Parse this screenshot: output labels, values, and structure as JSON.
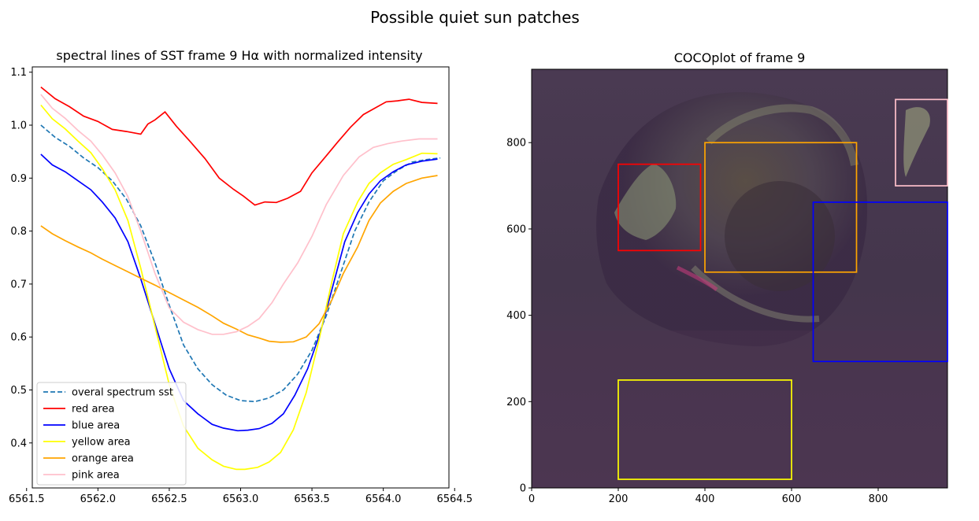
{
  "figure": {
    "suptitle": "Possible quiet sun patches"
  },
  "chart_data": [
    {
      "type": "line",
      "title": "spectral lines of SST frame 9 Hα with normalized intensity",
      "xlabel": "",
      "ylabel": "",
      "xlim": [
        6561.54,
        6564.46
      ],
      "ylim": [
        0.315,
        1.11
      ],
      "xticks": [
        6561.5,
        6562.0,
        6562.5,
        6563.0,
        6563.5,
        6564.0,
        6564.5
      ],
      "xtick_labels": [
        "6561.5",
        "6562.0",
        "6562.5",
        "6563.0",
        "6563.5",
        "6564.0",
        "6564.5"
      ],
      "yticks": [
        0.4,
        0.5,
        0.6,
        0.7,
        0.8,
        0.9,
        1.0,
        1.1
      ],
      "ytick_labels": [
        "0.4",
        "0.5",
        "0.6",
        "0.7",
        "0.8",
        "0.9",
        "1.0",
        "1.1"
      ],
      "grid": false,
      "legend_position": "lower-left",
      "x": [
        6561.6,
        6561.7,
        6561.8,
        6561.9,
        6562.0,
        6562.1,
        6562.2,
        6562.3,
        6562.4,
        6562.5,
        6562.6,
        6562.7,
        6562.8,
        6562.9,
        6563.0,
        6563.1,
        6563.2,
        6563.3,
        6563.4,
        6563.5,
        6563.6,
        6563.7,
        6563.8,
        6563.9,
        6564.0,
        6564.1,
        6564.2,
        6564.3,
        6564.4
      ],
      "series": [
        {
          "name": "overal spectrum sst",
          "color": "#1f77b4",
          "dashed": true,
          "values": [
            1.0,
            0.977,
            0.96,
            0.938,
            0.92,
            0.895,
            0.86,
            0.81,
            0.74,
            0.66,
            0.585,
            0.54,
            0.51,
            0.49,
            0.48,
            0.478,
            0.485,
            0.5,
            0.53,
            0.575,
            0.64,
            0.72,
            0.8,
            0.855,
            0.895,
            0.915,
            0.93,
            0.935,
            0.938
          ]
        },
        {
          "name": "red area",
          "color": "#ff0000",
          "dashed": false,
          "values": [
            1.072,
            1.05,
            1.035,
            1.017,
            1.007,
            0.992,
            0.988,
            0.983,
            1.002,
            1.01,
            1.025,
            0.998,
            0.968,
            0.937,
            0.9,
            0.879,
            0.866,
            0.849,
            0.855,
            0.854,
            0.862,
            0.875,
            0.91,
            0.942,
            0.968,
            0.996,
            1.02,
            1.032,
            1.044,
            1.046,
            1.049,
            1.043,
            1.041
          ],
          "x": [
            6561.6,
            6561.7,
            6561.8,
            6561.9,
            6562.0,
            6562.1,
            6562.2,
            6562.3,
            6562.35,
            6562.4,
            6562.47,
            6562.55,
            6562.65,
            6562.75,
            6562.85,
            6562.95,
            6563.02,
            6563.1,
            6563.17,
            6563.25,
            6563.33,
            6563.42,
            6563.5,
            6563.6,
            6563.68,
            6563.77,
            6563.86,
            6563.94,
            6564.02,
            6564.1,
            6564.18,
            6564.27,
            6564.38
          ]
        },
        {
          "name": "blue area",
          "color": "#0000ff",
          "dashed": false,
          "values": [
            0.945,
            0.925,
            0.912,
            0.895,
            0.878,
            0.855,
            0.825,
            0.78,
            0.71,
            0.625,
            0.54,
            0.48,
            0.455,
            0.435,
            0.428,
            0.423,
            0.424,
            0.427,
            0.437,
            0.455,
            0.49,
            0.54,
            0.61,
            0.7,
            0.78,
            0.835,
            0.87,
            0.895,
            0.912,
            0.925,
            0.932,
            0.936
          ],
          "x": [
            6561.6,
            6561.68,
            6561.77,
            6561.86,
            6561.95,
            6562.03,
            6562.12,
            6562.21,
            6562.3,
            6562.4,
            6562.5,
            6562.6,
            6562.7,
            6562.8,
            6562.88,
            6562.98,
            6563.05,
            6563.13,
            6563.22,
            6563.3,
            6563.38,
            6563.47,
            6563.56,
            6563.65,
            6563.73,
            6563.82,
            6563.9,
            6563.98,
            6564.07,
            6564.16,
            6564.27,
            6564.38
          ]
        },
        {
          "name": "yellow area",
          "color": "#ffff00",
          "dashed": false,
          "values": [
            1.038,
            1.012,
            0.993,
            0.97,
            0.948,
            0.918,
            0.878,
            0.82,
            0.73,
            0.62,
            0.51,
            0.432,
            0.39,
            0.368,
            0.356,
            0.35,
            0.35,
            0.354,
            0.364,
            0.382,
            0.425,
            0.495,
            0.595,
            0.705,
            0.795,
            0.855,
            0.89,
            0.91,
            0.926,
            0.935,
            0.947,
            0.946
          ],
          "x": [
            6561.6,
            6561.68,
            6561.77,
            6561.86,
            6561.95,
            6562.03,
            6562.12,
            6562.21,
            6562.3,
            6562.4,
            6562.5,
            6562.6,
            6562.7,
            6562.8,
            6562.88,
            6562.97,
            6563.03,
            6563.12,
            6563.2,
            6563.28,
            6563.37,
            6563.46,
            6563.55,
            6563.64,
            6563.72,
            6563.82,
            6563.9,
            6563.98,
            6564.07,
            6564.16,
            6564.27,
            6564.38
          ]
        },
        {
          "name": "orange area",
          "color": "#ffa500",
          "dashed": false,
          "values": [
            0.81,
            0.795,
            0.782,
            0.77,
            0.759,
            0.747,
            0.735,
            0.723,
            0.711,
            0.698,
            0.684,
            0.67,
            0.656,
            0.64,
            0.626,
            0.615,
            0.604,
            0.598,
            0.592,
            0.59,
            0.591,
            0.6,
            0.625,
            0.67,
            0.72,
            0.77,
            0.82,
            0.853,
            0.875,
            0.89,
            0.9,
            0.905
          ],
          "x": [
            6561.6,
            6561.68,
            6561.77,
            6561.86,
            6561.95,
            6562.03,
            6562.12,
            6562.21,
            6562.3,
            6562.4,
            6562.5,
            6562.6,
            6562.7,
            6562.8,
            6562.88,
            6562.97,
            6563.05,
            6563.13,
            6563.2,
            6563.28,
            6563.37,
            6563.46,
            6563.55,
            6563.64,
            6563.72,
            6563.82,
            6563.9,
            6563.98,
            6564.07,
            6564.16,
            6564.27,
            6564.38
          ]
        },
        {
          "name": "pink area",
          "color": "#ffc0cb",
          "dashed": false,
          "values": [
            1.058,
            1.032,
            1.013,
            0.99,
            0.97,
            0.944,
            0.91,
            0.865,
            0.8,
            0.72,
            0.655,
            0.628,
            0.614,
            0.605,
            0.605,
            0.61,
            0.62,
            0.635,
            0.665,
            0.7,
            0.74,
            0.79,
            0.85,
            0.905,
            0.94,
            0.958,
            0.965,
            0.97,
            0.974,
            0.974
          ],
          "x": [
            6561.6,
            6561.68,
            6561.77,
            6561.86,
            6561.95,
            6562.03,
            6562.12,
            6562.21,
            6562.3,
            6562.4,
            6562.5,
            6562.6,
            6562.7,
            6562.8,
            6562.88,
            6562.97,
            6563.05,
            6563.13,
            6563.22,
            6563.3,
            6563.4,
            6563.5,
            6563.6,
            6563.72,
            6563.83,
            6563.93,
            6564.03,
            6564.13,
            6564.25,
            6564.38
          ]
        }
      ]
    },
    {
      "type": "image",
      "title": "COCOplot of frame 9",
      "xlim": [
        0,
        960
      ],
      "ylim": [
        0,
        970
      ],
      "xticks": [
        0,
        200,
        400,
        600,
        800
      ],
      "xtick_labels": [
        "0",
        "200",
        "400",
        "600",
        "800"
      ],
      "yticks": [
        0,
        200,
        400,
        600,
        800
      ],
      "ytick_labels": [
        "0",
        "200",
        "400",
        "600",
        "800"
      ],
      "rectangles": [
        {
          "name": "red area",
          "color": "#ff0000",
          "x0": 200,
          "x1": 390,
          "y0": 550,
          "y1": 750
        },
        {
          "name": "orange area",
          "color": "#ffa500",
          "x0": 400,
          "x1": 750,
          "y0": 500,
          "y1": 800
        },
        {
          "name": "blue area",
          "color": "#0000ff",
          "x0": 650,
          "x1": 960,
          "y0": 293,
          "y1": 662
        },
        {
          "name": "pink area",
          "color": "#ffc0cb",
          "x0": 840,
          "x1": 960,
          "y0": 700,
          "y1": 900
        },
        {
          "name": "yellow area",
          "color": "#ffff00",
          "x0": 200,
          "x1": 600,
          "y0": 20,
          "y1": 250
        }
      ]
    }
  ]
}
